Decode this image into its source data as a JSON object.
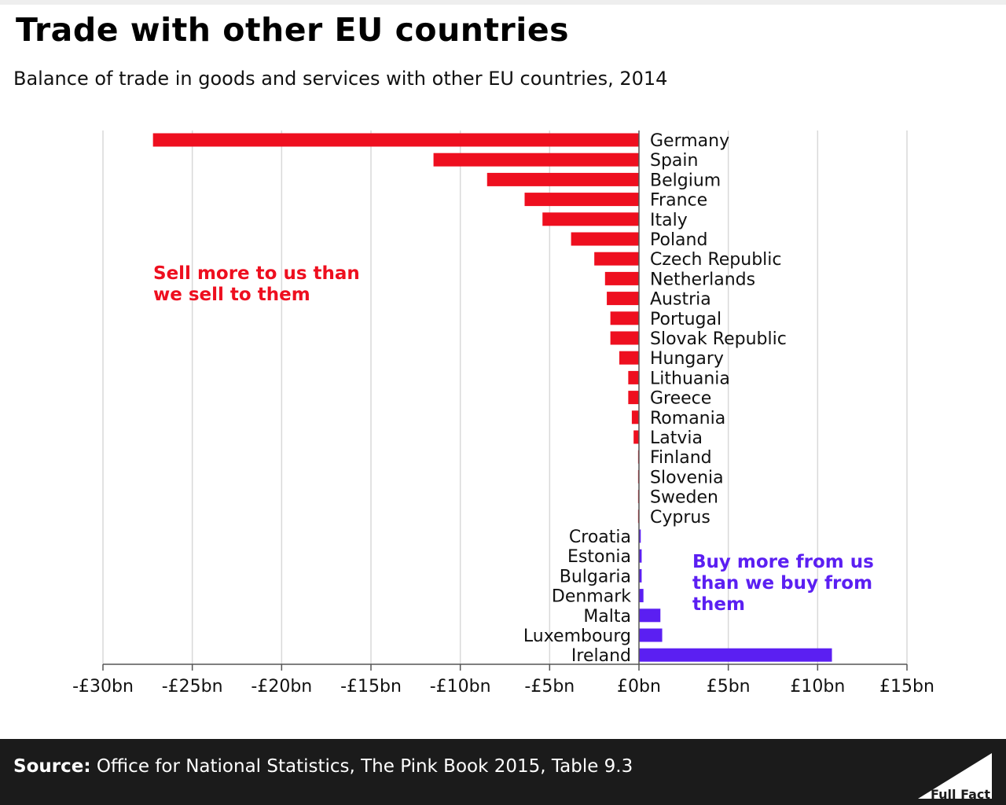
{
  "title": "Trade with other EU countries",
  "subtitle": "Balance of trade in goods and services with other EU countries, 2014",
  "source": {
    "label": "Source:",
    "text": "Office for National Statistics, The Pink Book 2015, Table 9.3"
  },
  "logo": {
    "text": "Full Fact"
  },
  "colors": {
    "deficit": "#ee0f1f",
    "surplus": "#5b1ff2",
    "grid": "#d9d9d9",
    "axis": "#555555",
    "footer": "#1b1b1b"
  },
  "chart_data": {
    "type": "bar",
    "orientation": "horizontal",
    "xlim": [
      -30,
      15
    ],
    "x_ticks": [
      -30,
      -25,
      -20,
      -15,
      -10,
      -5,
      0,
      5,
      10,
      15
    ],
    "x_tick_labels": [
      "-£30bn",
      "-£25bn",
      "-£20bn",
      "-£15bn",
      "-£10bn",
      "-£5bn",
      "£0bn",
      "£5bn",
      "£10bn",
      "£15bn"
    ],
    "grid": true,
    "categories": [
      "Germany",
      "Spain",
      "Belgium",
      "France",
      "Italy",
      "Poland",
      "Czech Republic",
      "Netherlands",
      "Austria",
      "Portugal",
      "Slovak Republic",
      "Hungary",
      "Lithuania",
      "Greece",
      "Romania",
      "Latvia",
      "Finland",
      "Slovenia",
      "Sweden",
      "Cyprus",
      "Croatia",
      "Estonia",
      "Bulgaria",
      "Denmark",
      "Malta",
      "Luxembourg",
      "Ireland"
    ],
    "values": [
      -27.2,
      -11.5,
      -8.5,
      -6.4,
      -5.4,
      -3.8,
      -2.5,
      -1.9,
      -1.8,
      -1.6,
      -1.6,
      -1.1,
      -0.6,
      -0.6,
      -0.4,
      -0.3,
      -0.05,
      -0.05,
      -0.05,
      -0.05,
      0.1,
      0.15,
      0.15,
      0.25,
      1.2,
      1.3,
      10.8
    ],
    "annotations": [
      {
        "text": "Sell more to us than we sell to them",
        "lines": [
          "Sell more to us than",
          "we sell to them"
        ],
        "color": "#ee0f1f"
      },
      {
        "text": "Buy more from us than we buy from them",
        "lines": [
          "Buy more from us",
          "than we buy from",
          "them"
        ],
        "color": "#5b1ff2"
      }
    ]
  }
}
